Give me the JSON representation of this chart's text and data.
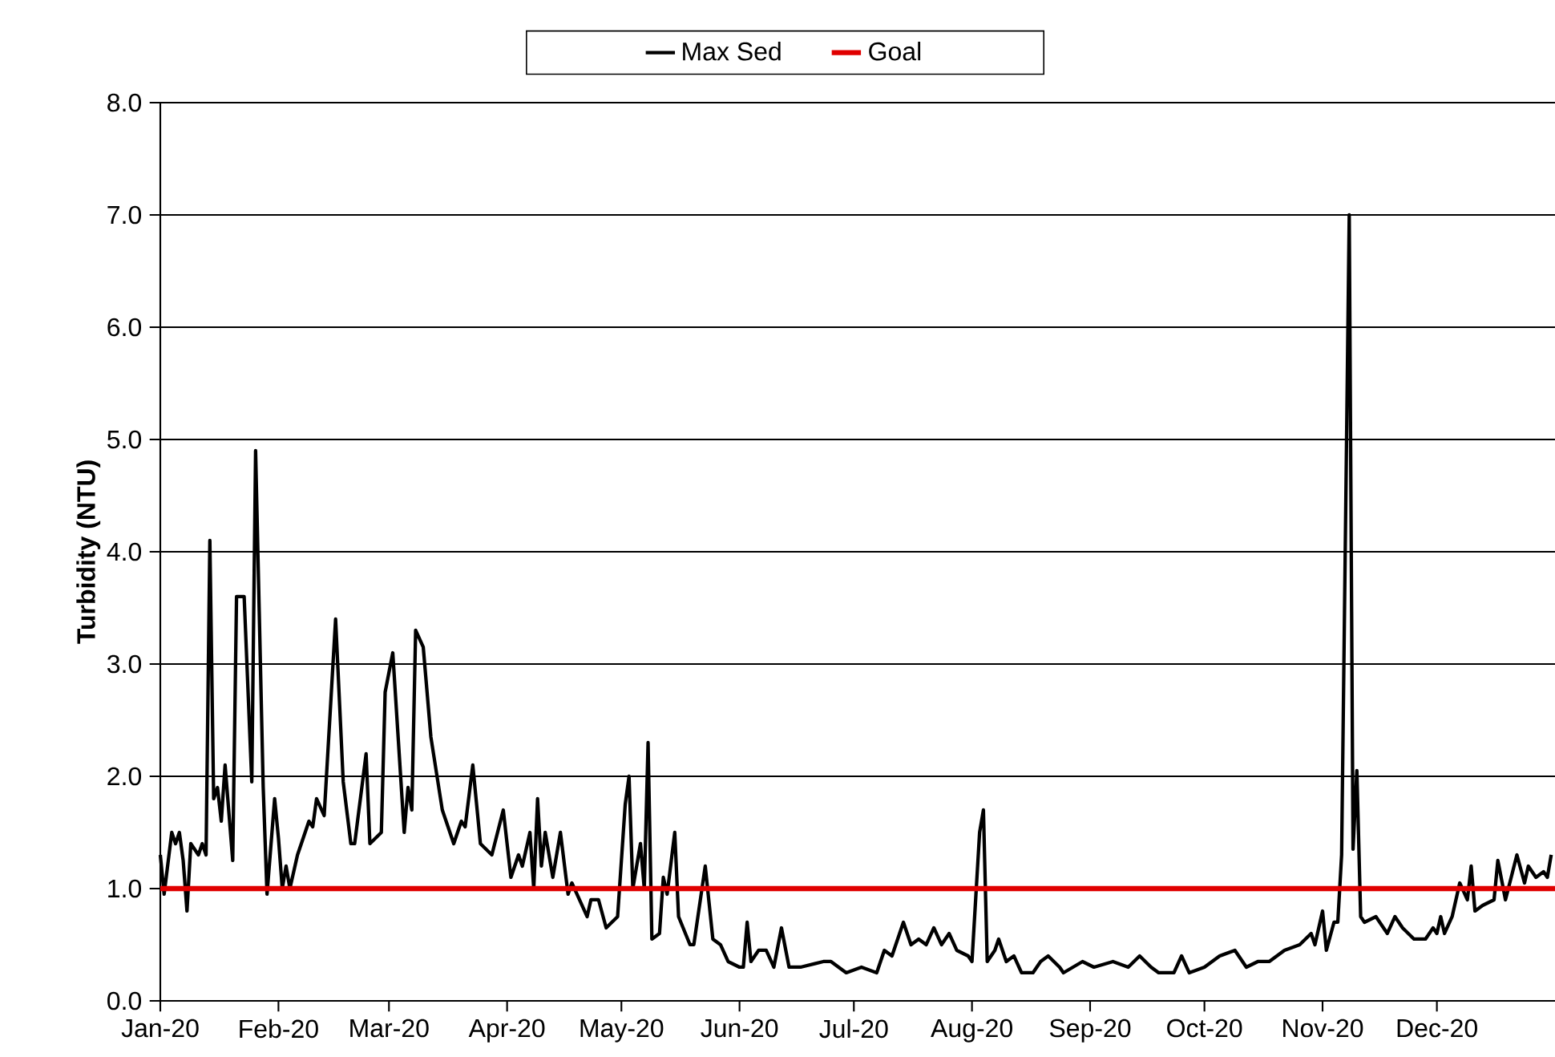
{
  "chart_data": {
    "type": "line",
    "ylabel": "Turbidity (NTU)",
    "x": [
      "2020-01-01",
      "2020-01-02",
      "2020-01-04",
      "2020-01-05",
      "2020-01-06",
      "2020-01-07",
      "2020-01-08",
      "2020-01-09",
      "2020-01-11",
      "2020-01-12",
      "2020-01-13",
      "2020-01-14",
      "2020-01-15",
      "2020-01-16",
      "2020-01-17",
      "2020-01-18",
      "2020-01-20",
      "2020-01-21",
      "2020-01-23",
      "2020-01-25",
      "2020-01-26",
      "2020-01-28",
      "2020-01-29",
      "2020-01-31",
      "2020-02-01",
      "2020-02-02",
      "2020-02-03",
      "2020-02-04",
      "2020-02-06",
      "2020-02-09",
      "2020-02-10",
      "2020-02-11",
      "2020-02-13",
      "2020-02-16",
      "2020-02-18",
      "2020-02-20",
      "2020-02-21",
      "2020-02-24",
      "2020-02-25",
      "2020-02-28",
      "2020-02-29",
      "2020-03-02",
      "2020-03-05",
      "2020-03-06",
      "2020-03-07",
      "2020-03-08",
      "2020-03-10",
      "2020-03-12",
      "2020-03-15",
      "2020-03-18",
      "2020-03-20",
      "2020-03-21",
      "2020-03-23",
      "2020-03-25",
      "2020-03-28",
      "2020-03-31",
      "2020-04-02",
      "2020-04-04",
      "2020-04-05",
      "2020-04-07",
      "2020-04-08",
      "2020-04-09",
      "2020-04-10",
      "2020-04-11",
      "2020-04-13",
      "2020-04-15",
      "2020-04-17",
      "2020-04-18",
      "2020-04-20",
      "2020-04-22",
      "2020-04-23",
      "2020-04-25",
      "2020-04-27",
      "2020-04-30",
      "2020-05-02",
      "2020-05-03",
      "2020-05-04",
      "2020-05-06",
      "2020-05-07",
      "2020-05-08",
      "2020-05-09",
      "2020-05-11",
      "2020-05-12",
      "2020-05-13",
      "2020-05-15",
      "2020-05-16",
      "2020-05-19",
      "2020-05-20",
      "2020-05-23",
      "2020-05-25",
      "2020-05-27",
      "2020-05-29",
      "2020-06-01",
      "2020-06-02",
      "2020-06-03",
      "2020-06-04",
      "2020-06-06",
      "2020-06-08",
      "2020-06-10",
      "2020-06-12",
      "2020-06-14",
      "2020-06-17",
      "2020-06-23",
      "2020-06-25",
      "2020-06-29",
      "2020-07-03",
      "2020-07-07",
      "2020-07-09",
      "2020-07-11",
      "2020-07-14",
      "2020-07-16",
      "2020-07-18",
      "2020-07-20",
      "2020-07-22",
      "2020-07-24",
      "2020-07-26",
      "2020-07-28",
      "2020-07-31",
      "2020-08-01",
      "2020-08-03",
      "2020-08-04",
      "2020-08-05",
      "2020-08-07",
      "2020-08-08",
      "2020-08-10",
      "2020-08-12",
      "2020-08-14",
      "2020-08-17",
      "2020-08-19",
      "2020-08-21",
      "2020-08-24",
      "2020-08-25",
      "2020-08-30",
      "2020-09-02",
      "2020-09-07",
      "2020-09-11",
      "2020-09-14",
      "2020-09-17",
      "2020-09-19",
      "2020-09-23",
      "2020-09-25",
      "2020-09-27",
      "2020-10-01",
      "2020-10-05",
      "2020-10-09",
      "2020-10-12",
      "2020-10-15",
      "2020-10-18",
      "2020-10-22",
      "2020-10-26",
      "2020-10-29",
      "2020-10-30",
      "2020-11-01",
      "2020-11-02",
      "2020-11-04",
      "2020-11-05",
      "2020-11-06",
      "2020-11-08",
      "2020-11-09",
      "2020-11-10",
      "2020-11-11",
      "2020-11-12",
      "2020-11-15",
      "2020-11-18",
      "2020-11-20",
      "2020-11-22",
      "2020-11-25",
      "2020-11-28",
      "2020-11-30",
      "2020-12-01",
      "2020-12-02",
      "2020-12-03",
      "2020-12-05",
      "2020-12-07",
      "2020-12-09",
      "2020-12-10",
      "2020-12-11",
      "2020-12-13",
      "2020-12-16",
      "2020-12-17",
      "2020-12-19",
      "2020-12-22",
      "2020-12-24",
      "2020-12-25",
      "2020-12-27",
      "2020-12-29",
      "2020-12-30",
      "2020-12-31"
    ],
    "series": [
      {
        "name": "Max Sed",
        "color": "#000000",
        "values": [
          1.3,
          0.95,
          1.5,
          1.4,
          1.5,
          1.25,
          0.8,
          1.4,
          1.3,
          1.4,
          1.3,
          4.1,
          1.8,
          1.9,
          1.6,
          2.1,
          1.25,
          3.6,
          3.6,
          1.95,
          4.9,
          1.9,
          0.95,
          1.8,
          1.45,
          1.0,
          1.2,
          1.0,
          1.3,
          1.6,
          1.55,
          1.8,
          1.65,
          3.4,
          1.95,
          1.4,
          1.4,
          2.2,
          1.4,
          1.5,
          2.75,
          3.1,
          1.5,
          1.9,
          1.7,
          3.3,
          3.15,
          2.35,
          1.7,
          1.4,
          1.6,
          1.55,
          2.1,
          1.4,
          1.3,
          1.7,
          1.1,
          1.3,
          1.2,
          1.5,
          1.0,
          1.8,
          1.2,
          1.5,
          1.1,
          1.5,
          0.95,
          1.05,
          0.9,
          0.75,
          0.9,
          0.9,
          0.65,
          0.75,
          1.75,
          2.0,
          1.0,
          1.4,
          1.0,
          2.3,
          0.55,
          0.6,
          1.1,
          0.95,
          1.5,
          0.75,
          0.5,
          0.5,
          1.2,
          0.55,
          0.5,
          0.35,
          0.3,
          0.3,
          0.7,
          0.35,
          0.45,
          0.45,
          0.3,
          0.65,
          0.3,
          0.3,
          0.35,
          0.35,
          0.25,
          0.3,
          0.25,
          0.45,
          0.4,
          0.7,
          0.5,
          0.55,
          0.5,
          0.65,
          0.5,
          0.6,
          0.45,
          0.4,
          0.35,
          1.5,
          1.7,
          0.35,
          0.45,
          0.55,
          0.35,
          0.4,
          0.25,
          0.25,
          0.35,
          0.4,
          0.3,
          0.25,
          0.35,
          0.3,
          0.35,
          0.3,
          0.4,
          0.3,
          0.25,
          0.25,
          0.4,
          0.25,
          0.3,
          0.4,
          0.45,
          0.3,
          0.35,
          0.35,
          0.45,
          0.5,
          0.6,
          0.5,
          0.8,
          0.45,
          0.7,
          0.7,
          1.3,
          7.0,
          1.35,
          2.05,
          0.75,
          0.7,
          0.75,
          0.6,
          0.75,
          0.65,
          0.55,
          0.55,
          0.65,
          0.6,
          0.75,
          0.6,
          0.75,
          1.05,
          0.9,
          1.2,
          0.8,
          0.85,
          0.9,
          1.25,
          0.9,
          1.3,
          1.05,
          1.2,
          1.1,
          1.15,
          1.1,
          1.3
        ]
      }
    ],
    "ref_lines": [
      {
        "axis": "y",
        "value": 1.0,
        "label": "Goal",
        "color": "#e00000"
      }
    ],
    "xlim": [
      "2020-01-01",
      "2021-01-01"
    ],
    "xticks": [
      {
        "value": "2020-01-01",
        "label": "Jan-20"
      },
      {
        "value": "2020-02-01",
        "label": "Feb-20"
      },
      {
        "value": "2020-03-01",
        "label": "Mar-20"
      },
      {
        "value": "2020-04-01",
        "label": "Apr-20"
      },
      {
        "value": "2020-05-01",
        "label": "May-20"
      },
      {
        "value": "2020-06-01",
        "label": "Jun-20"
      },
      {
        "value": "2020-07-01",
        "label": "Jul-20"
      },
      {
        "value": "2020-08-01",
        "label": "Aug-20"
      },
      {
        "value": "2020-09-01",
        "label": "Sep-20"
      },
      {
        "value": "2020-10-01",
        "label": "Oct-20"
      },
      {
        "value": "2020-11-01",
        "label": "Nov-20"
      },
      {
        "value": "2020-12-01",
        "label": "Dec-20"
      }
    ],
    "ylim": [
      0,
      8
    ],
    "yticks": [
      {
        "value": 0,
        "label": "0.0"
      },
      {
        "value": 1,
        "label": "1.0"
      },
      {
        "value": 2,
        "label": "2.0"
      },
      {
        "value": 3,
        "label": "3.0"
      },
      {
        "value": 4,
        "label": "4.0"
      },
      {
        "value": 5,
        "label": "5.0"
      },
      {
        "value": 6,
        "label": "6.0"
      },
      {
        "value": 7,
        "label": "7.0"
      },
      {
        "value": 8,
        "label": "8.0"
      }
    ],
    "grid": "y",
    "legend": "top",
    "marker": "none",
    "line_style": "solid"
  }
}
